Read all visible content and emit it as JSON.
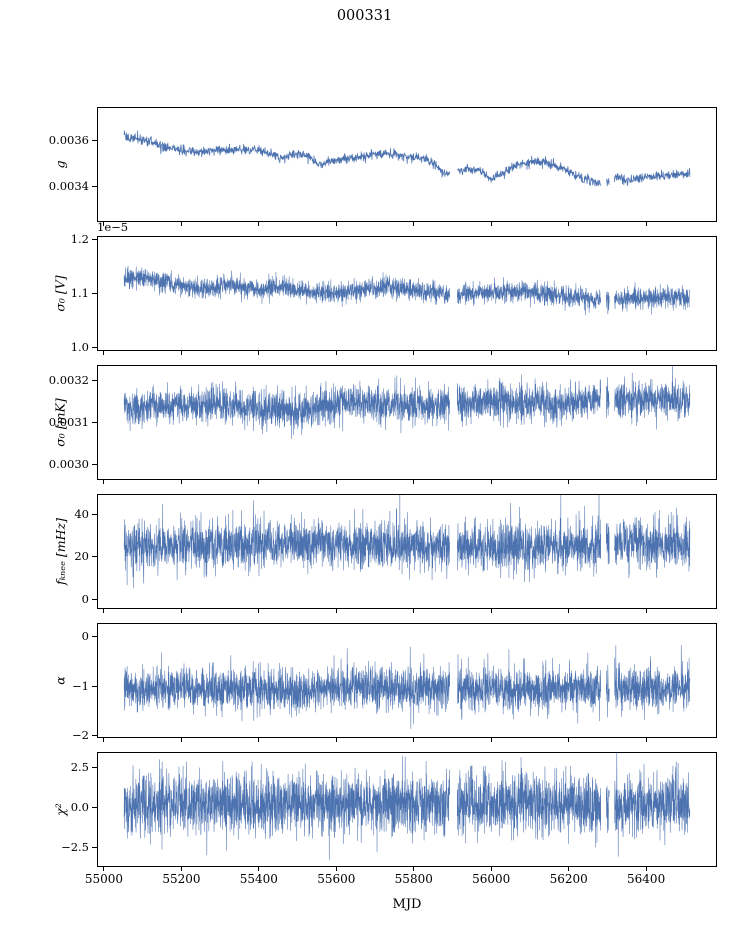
{
  "chart_data": {
    "type": "line",
    "title": "000331",
    "xlabel": "MJD",
    "line_color": "#4c72b0",
    "xlim": [
      54982,
      56583
    ],
    "x_data_range": [
      55052,
      56513
    ],
    "xticks": [
      55000,
      55200,
      55400,
      55600,
      55800,
      56000,
      56200,
      56400
    ],
    "xtick_labels": [
      "55000",
      "55200",
      "55400",
      "55600",
      "55800",
      "56000",
      "56200",
      "56400"
    ],
    "gaps": [
      [
        55893,
        55912
      ],
      [
        56283,
        56297
      ],
      [
        56305,
        56318
      ]
    ],
    "panels": [
      {
        "id": "g",
        "ylabel": "g",
        "ylim": [
          0.003244,
          0.003744
        ],
        "yticks": [
          0.0036,
          0.0034
        ],
        "ytick_labels": [
          "0.0036",
          "0.0034"
        ],
        "trend": [
          [
            55052,
            0.00361
          ],
          [
            55090,
            0.003605
          ],
          [
            55130,
            0.003585
          ],
          [
            55170,
            0.003565
          ],
          [
            55210,
            0.003555
          ],
          [
            55240,
            0.003545
          ],
          [
            55270,
            0.003555
          ],
          [
            55310,
            0.00356
          ],
          [
            55350,
            0.003558
          ],
          [
            55390,
            0.00356
          ],
          [
            55420,
            0.003548
          ],
          [
            55450,
            0.00352
          ],
          [
            55480,
            0.003535
          ],
          [
            55520,
            0.003538
          ],
          [
            55555,
            0.003495
          ],
          [
            55590,
            0.003505
          ],
          [
            55620,
            0.003515
          ],
          [
            55660,
            0.00353
          ],
          [
            55700,
            0.00354
          ],
          [
            55740,
            0.003542
          ],
          [
            55780,
            0.00353
          ],
          [
            55820,
            0.00352
          ],
          [
            55850,
            0.0035
          ],
          [
            55880,
            0.003455
          ],
          [
            55910,
            0.003465
          ],
          [
            55940,
            0.003475
          ],
          [
            55970,
            0.00347
          ],
          [
            56000,
            0.00343
          ],
          [
            56030,
            0.003455
          ],
          [
            56060,
            0.00349
          ],
          [
            56100,
            0.003505
          ],
          [
            56140,
            0.003505
          ],
          [
            56180,
            0.00348
          ],
          [
            56220,
            0.003445
          ],
          [
            56260,
            0.00342
          ],
          [
            56290,
            0.003415
          ],
          [
            56320,
            0.00344
          ],
          [
            56350,
            0.003425
          ],
          [
            56390,
            0.003435
          ],
          [
            56430,
            0.003445
          ],
          [
            56470,
            0.00345
          ],
          [
            56513,
            0.00346
          ]
        ],
        "noise": 1e-05,
        "n": 1800,
        "spike_p": 0.0,
        "spike_amp": 0,
        "spike_sign": 0,
        "seed": 11
      },
      {
        "id": "sigma0-v",
        "ylabel": "σ₀ [V]",
        "offset_text": "1e−5",
        "ylim": [
          0.9935,
          1.2065
        ],
        "yticks": [
          1.2,
          1.1,
          1.0
        ],
        "ytick_labels": [
          "1.2",
          "1.1",
          "1.0"
        ],
        "trend": [
          [
            55052,
            1.127
          ],
          [
            55090,
            1.13
          ],
          [
            55130,
            1.125
          ],
          [
            55170,
            1.118
          ],
          [
            55210,
            1.112
          ],
          [
            55250,
            1.108
          ],
          [
            55290,
            1.112
          ],
          [
            55330,
            1.114
          ],
          [
            55370,
            1.112
          ],
          [
            55410,
            1.108
          ],
          [
            55450,
            1.112
          ],
          [
            55490,
            1.106
          ],
          [
            55530,
            1.103
          ],
          [
            55570,
            1.102
          ],
          [
            55610,
            1.103
          ],
          [
            55650,
            1.107
          ],
          [
            55690,
            1.11
          ],
          [
            55730,
            1.112
          ],
          [
            55770,
            1.11
          ],
          [
            55810,
            1.107
          ],
          [
            55850,
            1.103
          ],
          [
            55890,
            1.096
          ],
          [
            55930,
            1.098
          ],
          [
            55970,
            1.101
          ],
          [
            56010,
            1.103
          ],
          [
            56050,
            1.105
          ],
          [
            56090,
            1.104
          ],
          [
            56130,
            1.1
          ],
          [
            56170,
            1.097
          ],
          [
            56210,
            1.094
          ],
          [
            56250,
            1.09
          ],
          [
            56290,
            1.086
          ],
          [
            56330,
            1.09
          ],
          [
            56370,
            1.092
          ],
          [
            56410,
            1.092
          ],
          [
            56450,
            1.093
          ],
          [
            56513,
            1.093
          ]
        ],
        "noise": 0.0095,
        "n": 3600,
        "spike_p": 0.004,
        "spike_amp": 0.02,
        "spike_sign": -1,
        "seed": 22
      },
      {
        "id": "sigma0-mk",
        "ylabel": "σ₀ [mK]",
        "ylim": [
          0.002962,
          0.003238
        ],
        "yticks": [
          0.0032,
          0.0031,
          0.003
        ],
        "ytick_labels": [
          "0.0032",
          "0.0031",
          "0.0030"
        ],
        "trend": [
          [
            55052,
            0.003135
          ],
          [
            55150,
            0.00314
          ],
          [
            55250,
            0.003142
          ],
          [
            55350,
            0.00314
          ],
          [
            55420,
            0.003132
          ],
          [
            55500,
            0.00313
          ],
          [
            55560,
            0.003142
          ],
          [
            55620,
            0.003148
          ],
          [
            55700,
            0.003145
          ],
          [
            55780,
            0.003142
          ],
          [
            55850,
            0.00314
          ],
          [
            55900,
            0.00315
          ],
          [
            55960,
            0.003148
          ],
          [
            56030,
            0.003145
          ],
          [
            56100,
            0.003148
          ],
          [
            56170,
            0.003145
          ],
          [
            56240,
            0.00315
          ],
          [
            56300,
            0.003155
          ],
          [
            56370,
            0.003152
          ],
          [
            56440,
            0.003158
          ],
          [
            56513,
            0.003155
          ]
        ],
        "noise": 2.1e-05,
        "n": 3600,
        "spike_p": 0.006,
        "spike_amp": 5e-05,
        "spike_sign": 0,
        "seed": 33
      },
      {
        "id": "f-knee",
        "ylabel": "fₖₙₑₑ [mHz]",
        "ylim": [
          -4.5,
          49.5
        ],
        "yticks": [
          40,
          20,
          0
        ],
        "ytick_labels": [
          "40",
          "20",
          "0"
        ],
        "trend": [
          [
            55052,
            25
          ],
          [
            55300,
            26
          ],
          [
            55600,
            25.5
          ],
          [
            55900,
            24.5
          ],
          [
            56100,
            24.5
          ],
          [
            56300,
            26
          ],
          [
            56513,
            26
          ]
        ],
        "noise": 5.5,
        "n": 3600,
        "spike_p": 0.012,
        "spike_amp": 16,
        "spike_sign": 1,
        "seed": 44
      },
      {
        "id": "alpha",
        "ylabel": "α",
        "ylim": [
          -2.05,
          0.28
        ],
        "yticks": [
          0,
          -1,
          -2
        ],
        "ytick_labels": [
          "0",
          "−1",
          "−2"
        ],
        "trend": [
          [
            55052,
            -1.05
          ],
          [
            55300,
            -1.05
          ],
          [
            55500,
            -1.12
          ],
          [
            55650,
            -1.02
          ],
          [
            55800,
            -1.05
          ],
          [
            56000,
            -1.06
          ],
          [
            56200,
            -1.04
          ],
          [
            56513,
            -1.03
          ]
        ],
        "noise": 0.21,
        "n": 3600,
        "spike_p": 0.01,
        "spike_amp": 0.55,
        "spike_sign": 0,
        "seed": 55
      },
      {
        "id": "chi2",
        "ylabel": "χ²",
        "ylim": [
          -3.7,
          3.5
        ],
        "yticks": [
          2.5,
          0.0,
          -2.5
        ],
        "ytick_labels": [
          "2.5",
          "0.0",
          "−2.5"
        ],
        "trend": [
          [
            55052,
            0.3
          ],
          [
            56513,
            0.3
          ]
        ],
        "noise": 0.95,
        "n": 3600,
        "spike_p": 0.006,
        "spike_amp": 1.4,
        "spike_sign": 0,
        "seed": 66
      }
    ]
  }
}
